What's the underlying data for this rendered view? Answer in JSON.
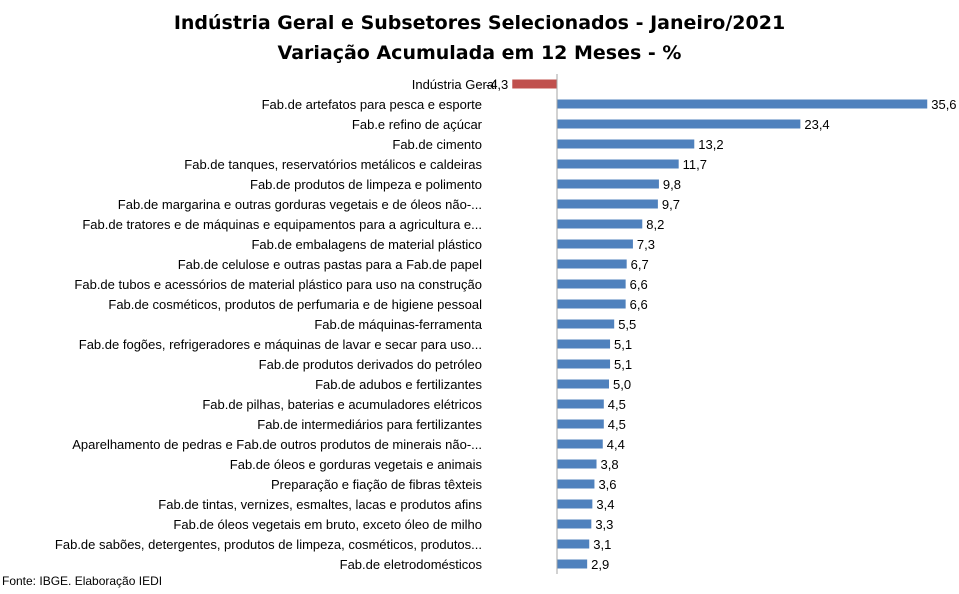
{
  "chart_data": {
    "type": "bar",
    "orientation": "horizontal",
    "title": "Indústria Geral e Subsetores Selecionados - Janeiro/2021",
    "subtitle": "Variação Acumulada em 12 Meses - %",
    "xlabel": "",
    "ylabel": "",
    "xlim": [
      -4.3,
      35.6
    ],
    "grid": false,
    "legend": "none",
    "categories": [
      "Indústria Geral",
      "Fab.de artefatos para pesca e esporte",
      "Fab.e refino de açúcar",
      "Fab.de cimento",
      "Fab.de tanques, reservatórios metálicos e caldeiras",
      "Fab.de produtos de limpeza e polimento",
      "Fab.de margarina e outras gorduras vegetais e de óleos não-...",
      "Fab.de tratores e de máquinas e equipamentos para a agricultura e...",
      "Fab.de embalagens de material plástico",
      "Fab.de celulose e outras pastas para a Fab.de papel",
      "Fab.de tubos e acessórios de material plástico para uso na construção",
      "Fab.de cosméticos, produtos de perfumaria e de higiene pessoal",
      "Fab.de máquinas-ferramenta",
      "Fab.de fogões, refrigeradores e máquinas de lavar e secar para uso...",
      "Fab.de produtos derivados do petróleo",
      "Fab.de adubos e fertilizantes",
      "Fab.de pilhas, baterias e acumuladores elétricos",
      "Fab.de intermediários para fertilizantes",
      "Aparelhamento de pedras e Fab.de outros produtos de minerais não-...",
      "Fab.de óleos e gorduras vegetais e animais",
      "Preparação e fiação de fibras têxteis",
      "Fab.de tintas, vernizes, esmaltes, lacas e produtos afins",
      "Fab.de óleos vegetais em bruto, exceto óleo de milho",
      "Fab.de sabões, detergentes, produtos de limpeza, cosméticos, produtos...",
      "Fab.de eletrodomésticos"
    ],
    "values": [
      -4.3,
      35.6,
      23.4,
      13.2,
      11.7,
      9.8,
      9.7,
      8.2,
      7.3,
      6.7,
      6.6,
      6.6,
      5.5,
      5.1,
      5.1,
      5.0,
      4.5,
      4.5,
      4.4,
      3.8,
      3.6,
      3.4,
      3.3,
      3.1,
      2.9
    ],
    "value_labels": [
      "-4,3",
      "35,6",
      "23,4",
      "13,2",
      "11,7",
      "9,8",
      "9,7",
      "8,2",
      "7,3",
      "6,7",
      "6,6",
      "6,6",
      "5,5",
      "5,1",
      "5,1",
      "5,0",
      "4,5",
      "4,5",
      "4,4",
      "3,8",
      "3,6",
      "3,4",
      "3,3",
      "3,1",
      "2,9"
    ],
    "colors": {
      "positive": "#4f81bd",
      "negative": "#c0504d",
      "axis": "#a6a6a6"
    }
  },
  "footer": {
    "source": "Fonte: IBGE. Elaboração IEDI"
  }
}
